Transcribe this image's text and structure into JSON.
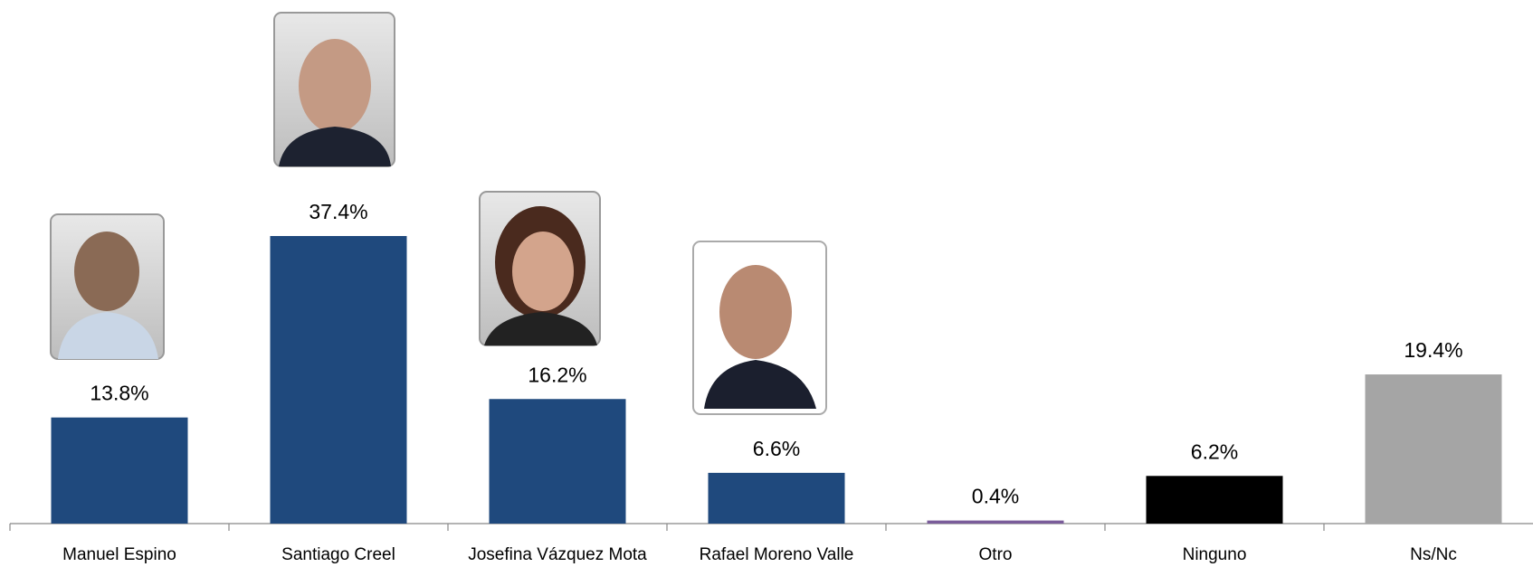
{
  "chart_data": {
    "type": "bar",
    "categories": [
      "Manuel Espino",
      "Santiago Creel",
      "Josefina Vázquez Mota",
      "Rafael Moreno Valle",
      "Otro",
      "Ninguno",
      "Ns/Nc"
    ],
    "values": [
      13.8,
      37.4,
      16.2,
      6.6,
      0.4,
      6.2,
      19.4
    ],
    "value_labels": [
      "13.8%",
      "37.4%",
      "16.2%",
      "6.6%",
      "0.4%",
      "6.2%",
      "19.4%"
    ],
    "colors": [
      "#1f497d",
      "#1f497d",
      "#1f497d",
      "#1f497d",
      "#7a5c9a",
      "#000000",
      "#a5a5a5"
    ]
  }
}
